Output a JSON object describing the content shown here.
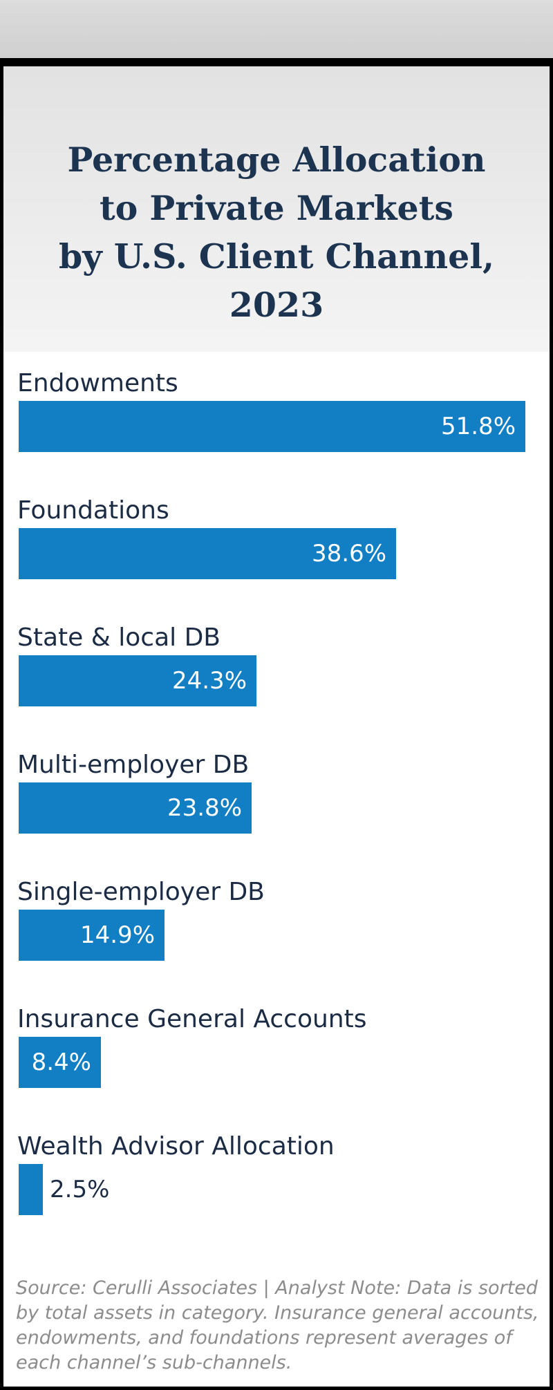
{
  "chart_data": {
    "type": "bar",
    "orientation": "horizontal",
    "title": "Percentage Allocation to Private Markets by U.S. Client Channel, 2023",
    "title_lines": [
      "Percentage Allocation",
      "to Private Markets",
      "by U.S. Client Channel,",
      "2023"
    ],
    "categories": [
      "Endowments",
      "Foundations",
      "State & local DB",
      "Multi-employer DB",
      "Single-employer DB",
      "Insurance General Accounts",
      "Wealth Advisor Allocation"
    ],
    "values": [
      51.8,
      38.6,
      24.3,
      23.8,
      14.9,
      8.4,
      2.5
    ],
    "value_labels": [
      "51.8%",
      "38.6%",
      "24.3%",
      "23.8%",
      "14.9%",
      "8.4%",
      "2.5%"
    ],
    "units": "%",
    "xlim": [
      0,
      51.8
    ],
    "bar_color": "#127ec4",
    "source_note": "Source: Cerulli Associates  |  Analyst Note: Data is sorted by total assets in category. Insurance general accounts, endowments, and foundations represent averages of each channel’s sub-channels."
  }
}
